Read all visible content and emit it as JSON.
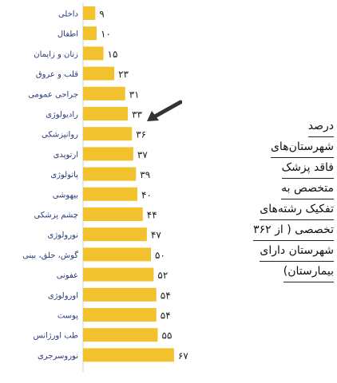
{
  "title_lines": [
    "درصد",
    "شهرستان‌های",
    "فاقد پزشک",
    "متخصص به",
    "تفکیک رشته‌های",
    "تخصصی ( از ۳۶۲",
    "شهرستان دارای",
    "بیمارستان)"
  ],
  "chart_data": {
    "type": "bar",
    "orientation": "horizontal",
    "title": "درصد شهرستان‌های فاقد پزشک متخصص به تفکیک رشته‌های تخصصی ( از ۳۶۲ شهرستان دارای بیمارستان)",
    "xlabel": "",
    "ylabel": "",
    "categories": [
      "داخلی",
      "اطفال",
      "زنان و زایمان",
      "قلب و عروق",
      "جراحی عمومی",
      "رادیولوژی",
      "روانپزشکی",
      "ارتوپدی",
      "پاتولوژی",
      "بیهوشی",
      "چشم پزشکی",
      "نورولوژی",
      "گوش، حلق، بینی",
      "عفونی",
      "اورولوژی",
      "پوست",
      "طب اورژانس",
      "نوروسرجری"
    ],
    "values": [
      9,
      10,
      15,
      23,
      31,
      33,
      36,
      37,
      39,
      40,
      44,
      47,
      50,
      52,
      54,
      54,
      55,
      67
    ],
    "value_labels": [
      "۹",
      "۱۰",
      "۱۵",
      "۲۳",
      "۳۱",
      "۳۳",
      "۳۶",
      "۳۷",
      "۳۹",
      "۴۰",
      "۴۴",
      "۴۷",
      "۵۰",
      "۵۲",
      "۵۴",
      "۵۴",
      "۵۵",
      "۶۷"
    ],
    "highlight_category": "رادیولوژی",
    "xlim": [
      0,
      67
    ],
    "bar_color": "#f2c22e",
    "label_color": "#2d3a7a",
    "grid": false,
    "legend": "none"
  }
}
